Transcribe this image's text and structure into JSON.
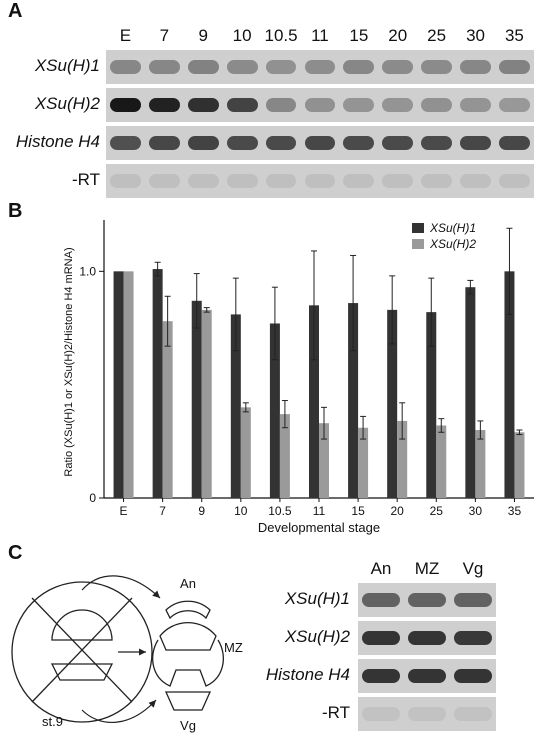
{
  "panels": {
    "a": "A",
    "b": "B",
    "c": "C"
  },
  "panel_a": {
    "lanes": [
      "E",
      "7",
      "9",
      "10",
      "10.5",
      "11",
      "15",
      "20",
      "25",
      "30",
      "35"
    ],
    "rows": [
      {
        "label": "XSu(H)1",
        "italic": true,
        "intensity": [
          0.35,
          0.35,
          0.38,
          0.33,
          0.3,
          0.32,
          0.35,
          0.33,
          0.33,
          0.35,
          0.38
        ]
      },
      {
        "label": "XSu(H)2",
        "italic": true,
        "intensity": [
          0.95,
          0.9,
          0.82,
          0.72,
          0.35,
          0.3,
          0.28,
          0.28,
          0.3,
          0.28,
          0.26
        ]
      },
      {
        "label": "Histone H4",
        "italic": true,
        "intensity": [
          0.65,
          0.7,
          0.72,
          0.68,
          0.68,
          0.7,
          0.68,
          0.68,
          0.68,
          0.7,
          0.7
        ]
      },
      {
        "label": "-RT",
        "italic": false,
        "intensity": [
          0.05,
          0.05,
          0.05,
          0.05,
          0.05,
          0.05,
          0.05,
          0.05,
          0.05,
          0.05,
          0.05
        ]
      }
    ]
  },
  "chart_data": {
    "type": "bar",
    "categories": [
      "E",
      "7",
      "9",
      "10",
      "10.5",
      "11",
      "15",
      "20",
      "25",
      "30",
      "35"
    ],
    "series": [
      {
        "name": "XSu(H)1",
        "color": "#333333",
        "values": [
          1.0,
          1.01,
          0.87,
          0.81,
          0.77,
          0.85,
          0.86,
          0.83,
          0.82,
          0.93,
          1.0
        ],
        "errors": [
          0.0,
          0.03,
          0.12,
          0.16,
          0.16,
          0.24,
          0.21,
          0.15,
          0.15,
          0.03,
          0.19
        ]
      },
      {
        "name": "XSu(H)2",
        "color": "#9a9a9a",
        "values": [
          1.0,
          0.78,
          0.83,
          0.4,
          0.37,
          0.33,
          0.31,
          0.34,
          0.32,
          0.3,
          0.29
        ],
        "errors": [
          0.0,
          0.11,
          0.01,
          0.02,
          0.06,
          0.07,
          0.05,
          0.08,
          0.03,
          0.04,
          0.01
        ]
      }
    ],
    "ylabel": "Ratio (XSu(H)1 or XSu(H)2/Histone H4 mRNA)",
    "xlabel": "Developmental stage",
    "yticks": [
      {
        "value": 0,
        "label": "0"
      },
      {
        "value": 1.0,
        "label": "1.0"
      }
    ],
    "ylim": [
      0,
      1.2
    ],
    "legend_position": "top-right",
    "grid": false
  },
  "panel_c": {
    "diagram": {
      "stage_label": "st.9",
      "an_label": "An",
      "mz_label": "MZ",
      "vg_label": "Vg"
    },
    "lanes": [
      "An",
      "MZ",
      "Vg"
    ],
    "rows": [
      {
        "label": "XSu(H)1",
        "italic": true,
        "intensity": [
          0.55,
          0.55,
          0.55
        ]
      },
      {
        "label": "XSu(H)2",
        "italic": true,
        "intensity": [
          0.8,
          0.8,
          0.78
        ]
      },
      {
        "label": "Histone H4",
        "italic": true,
        "intensity": [
          0.8,
          0.8,
          0.8
        ]
      },
      {
        "label": "-RT",
        "italic": false,
        "intensity": [
          0.03,
          0.03,
          0.03
        ]
      }
    ]
  }
}
